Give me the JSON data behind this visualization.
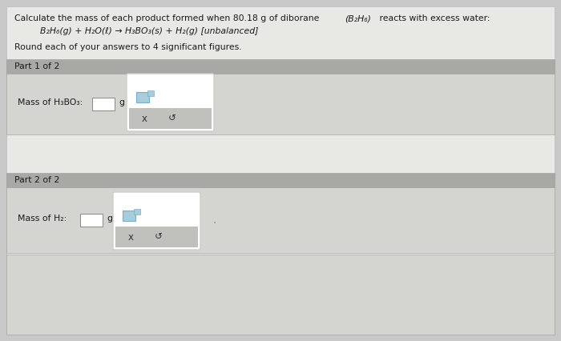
{
  "title_text": "Calculate the mass of each product formed when 80.18 g of diborane ",
  "title_formula": "(B₂H₆)",
  "title_end": " reacts with excess water:",
  "equation": "B₂H₆(g) + H₂O(ℓ) → H₃BO₃(s) + H₂(g) [unbalanced]",
  "round_note": "Round each of your answers to 4 significant figures.",
  "part1_label": "Part 1 of 2",
  "part1_mass_label": "Mass of H₃BO₃:",
  "part2_label": "Part 2 of 2",
  "part2_mass_label": "Mass of H₂:",
  "unit": "g",
  "x_btn": "x",
  "refresh_btn": "↺",
  "bg_color": "#c8c8c8",
  "main_bg": "#e8e8e4",
  "panel_header_bg": "#a8a8a4",
  "panel_content_bg": "#d4d4d0",
  "white_box": "#ffffff",
  "popup_bg": "#f0f0ee",
  "popup_border": "#cccccc",
  "popup_lower_bg": "#c0c0bc",
  "small_box_blue": "#a8ccd8",
  "small_box_border": "#7aaccb",
  "text_dark": "#1a1a1a",
  "text_medium": "#333333",
  "border_color": "#aaaaaa",
  "title_fs": 7.8,
  "label_fs": 7.8,
  "header_fs": 7.8,
  "btn_fs": 8.5,
  "eq_fs": 7.8
}
